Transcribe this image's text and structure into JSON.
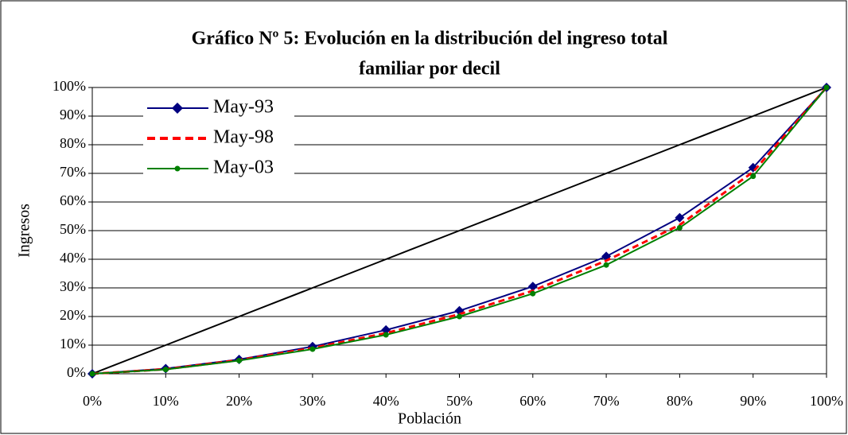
{
  "chart_data": {
    "type": "line",
    "title": [
      "Gráfico Nº 5: Evolución en la distribución del ingreso total",
      "familiar por decil"
    ],
    "x_label": "Población",
    "y_label": "Ingresos",
    "categories": [
      "0%",
      "10%",
      "20%",
      "30%",
      "40%",
      "50%",
      "60%",
      "70%",
      "80%",
      "90%",
      "100%"
    ],
    "series": [
      {
        "color": "#000000",
        "marker": "none",
        "dash": false,
        "values": [
          0,
          10,
          20,
          30,
          40,
          50,
          60,
          70,
          80,
          90,
          100
        ]
      },
      {
        "name": "May-93",
        "color": "#000080",
        "marker": "diamond",
        "dash": false,
        "values": [
          0,
          1.8,
          5,
          9.5,
          15.3,
          22,
          30.5,
          41,
          54.5,
          72,
          100
        ]
      },
      {
        "name": "May-98",
        "color": "#ff0000",
        "marker": "none",
        "dash": true,
        "values": [
          0,
          1.6,
          4.8,
          9,
          14.2,
          20.8,
          29,
          39.5,
          52,
          70.5,
          100
        ]
      },
      {
        "name": "May-03",
        "color": "#008000",
        "marker": "circle",
        "dash": false,
        "values": [
          0,
          1.5,
          4.6,
          8.6,
          13.6,
          20,
          28,
          38,
          51,
          69,
          100
        ]
      }
    ],
    "ylim": [
      0,
      100
    ],
    "yticks": [
      {
        "value": 0,
        "label": "0%"
      },
      {
        "value": 10,
        "label": "10%"
      },
      {
        "value": 20,
        "label": "20%"
      },
      {
        "value": 30,
        "label": "30%"
      },
      {
        "value": 40,
        "label": "40%"
      },
      {
        "value": 50,
        "label": "50%"
      },
      {
        "value": 60,
        "label": "60%"
      },
      {
        "value": 70,
        "label": "70%"
      },
      {
        "value": 80,
        "label": "80%"
      },
      {
        "value": 90,
        "label": "90%"
      },
      {
        "value": 100,
        "label": "100%"
      }
    ],
    "grid": true
  }
}
